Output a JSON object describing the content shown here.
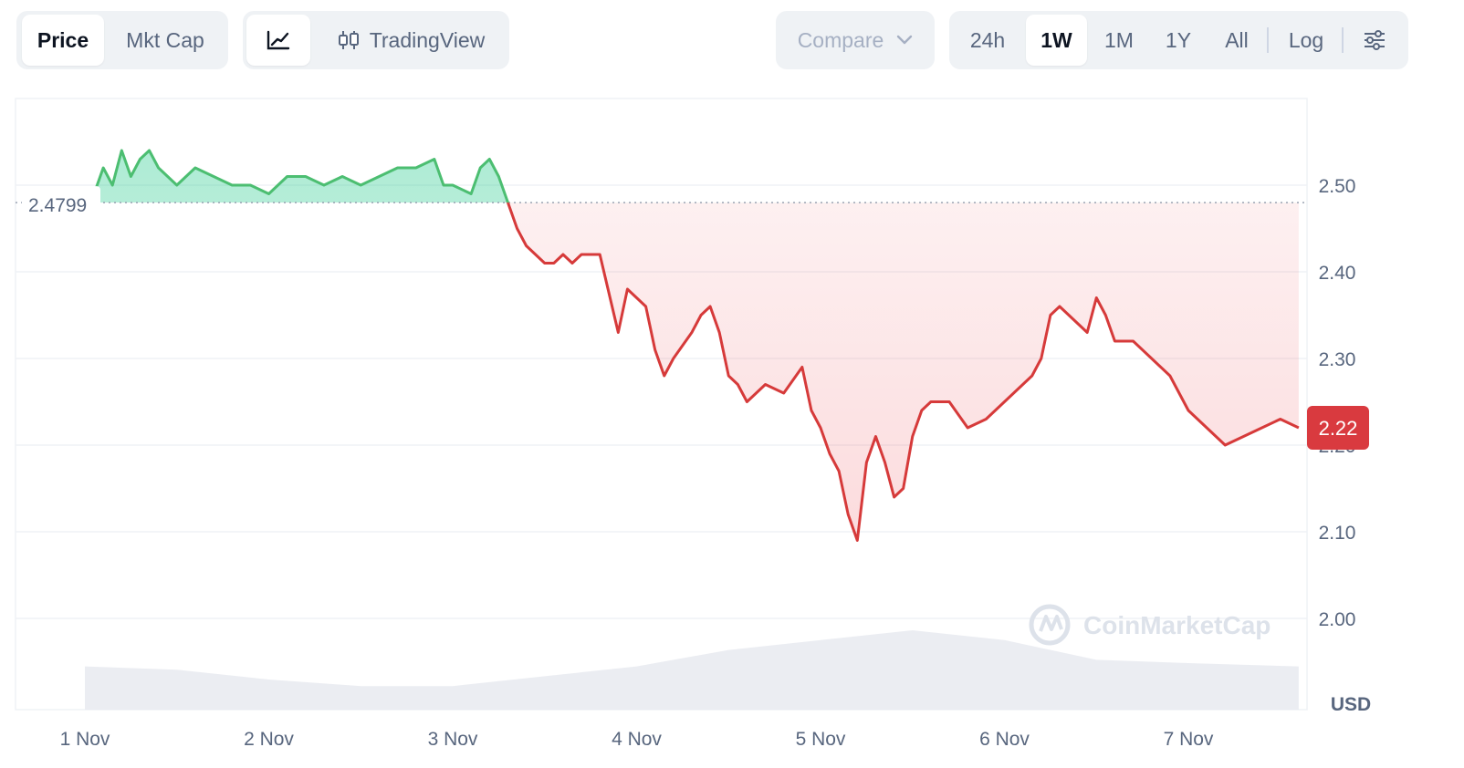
{
  "toolbar": {
    "view_tabs": [
      {
        "label": "Price",
        "active": true
      },
      {
        "label": "Mkt Cap",
        "active": false
      }
    ],
    "chart_style": {
      "line_icon": "line-chart-icon",
      "candle_icon": "candlestick-icon",
      "tradingview_label": "TradingView"
    },
    "compare": {
      "label": "Compare",
      "icon": "chevron-down-icon"
    },
    "ranges": [
      {
        "label": "24h",
        "active": false
      },
      {
        "label": "1W",
        "active": true
      },
      {
        "label": "1M",
        "active": false
      },
      {
        "label": "1Y",
        "active": false
      },
      {
        "label": "All",
        "active": false
      }
    ],
    "log_label": "Log",
    "settings_icon": "sliders-icon"
  },
  "chart": {
    "baseline_label": "2.4799",
    "current_price_label": "2.22",
    "currency_label": "USD",
    "watermark": "CoinMarketCap",
    "colors": {
      "up": "#16c784",
      "down": "#ea3943",
      "up_line": "#4cbe71",
      "down_line": "#d63a3a",
      "badge": "#d93a3f",
      "grid": "#eff2f5"
    }
  },
  "chart_data": {
    "type": "line",
    "title": "",
    "xlabel": "",
    "ylabel": "USD",
    "x_range": [
      1.0,
      7.6
    ],
    "ylim": [
      1.9,
      2.6
    ],
    "y_ticks": [
      2.0,
      2.1,
      2.2,
      2.3,
      2.4,
      2.5
    ],
    "y_tick_labels": [
      "2.00",
      "2.10",
      "2.20",
      "2.30",
      "2.40",
      "2.50"
    ],
    "x_ticks": [
      1.0,
      2.0,
      3.0,
      4.0,
      5.0,
      6.0,
      7.0
    ],
    "x_tick_labels": [
      "1 Nov",
      "2 Nov",
      "3 Nov",
      "4 Nov",
      "5 Nov",
      "6 Nov",
      "7 Nov"
    ],
    "baseline": 2.4799,
    "current": 2.22,
    "grid": true,
    "series": [
      {
        "x": [
          1.0,
          1.05,
          1.1,
          1.15,
          1.2,
          1.25,
          1.3,
          1.35,
          1.4,
          1.45,
          1.5,
          1.6,
          1.7,
          1.8,
          1.9,
          2.0,
          2.05,
          2.1,
          2.2,
          2.3,
          2.4,
          2.5,
          2.6,
          2.7,
          2.8,
          2.9,
          2.95,
          3.0,
          3.1,
          3.15,
          3.2,
          3.25,
          3.3,
          3.35,
          3.4,
          3.45,
          3.5,
          3.55,
          3.6,
          3.65,
          3.7,
          3.8,
          3.9,
          3.95,
          4.0,
          4.05,
          4.1,
          4.15,
          4.2,
          4.3,
          4.35,
          4.4,
          4.45,
          4.5,
          4.55,
          4.6,
          4.65,
          4.7,
          4.8,
          4.9,
          4.95,
          5.0,
          5.05,
          5.1,
          5.15,
          5.2,
          5.25,
          5.3,
          5.35,
          5.4,
          5.45,
          5.5,
          5.55,
          5.6,
          5.7,
          5.8,
          5.9,
          6.0,
          6.05,
          6.1,
          6.15,
          6.2,
          6.25,
          6.3,
          6.35,
          6.4,
          6.45,
          6.5,
          6.55,
          6.6,
          6.7,
          6.8,
          6.9,
          7.0,
          7.05,
          7.1,
          7.15,
          7.2,
          7.3,
          7.4,
          7.5,
          7.6
        ],
        "y": [
          2.47,
          2.49,
          2.52,
          2.5,
          2.54,
          2.51,
          2.53,
          2.54,
          2.52,
          2.51,
          2.5,
          2.52,
          2.51,
          2.5,
          2.5,
          2.49,
          2.5,
          2.51,
          2.51,
          2.5,
          2.51,
          2.5,
          2.51,
          2.52,
          2.52,
          2.53,
          2.5,
          2.5,
          2.49,
          2.52,
          2.53,
          2.51,
          2.48,
          2.45,
          2.43,
          2.42,
          2.41,
          2.41,
          2.42,
          2.41,
          2.42,
          2.42,
          2.33,
          2.38,
          2.37,
          2.36,
          2.31,
          2.28,
          2.3,
          2.33,
          2.35,
          2.36,
          2.33,
          2.28,
          2.27,
          2.25,
          2.26,
          2.27,
          2.26,
          2.29,
          2.24,
          2.22,
          2.19,
          2.17,
          2.12,
          2.09,
          2.18,
          2.21,
          2.18,
          2.14,
          2.15,
          2.21,
          2.24,
          2.25,
          2.25,
          2.22,
          2.23,
          2.25,
          2.26,
          2.27,
          2.28,
          2.3,
          2.35,
          2.36,
          2.35,
          2.34,
          2.33,
          2.37,
          2.35,
          2.32,
          2.32,
          2.3,
          2.28,
          2.24,
          2.23,
          2.22,
          2.21,
          2.2,
          2.21,
          2.22,
          2.23,
          2.22
        ]
      }
    ],
    "volume": {
      "x": [
        1.0,
        1.5,
        2.0,
        2.5,
        3.0,
        3.5,
        4.0,
        4.5,
        5.0,
        5.5,
        6.0,
        6.5,
        7.0,
        7.6
      ],
      "values": [
        0.45,
        0.4,
        0.25,
        0.15,
        0.15,
        0.3,
        0.45,
        0.7,
        0.85,
        1.0,
        0.85,
        0.55,
        0.5,
        0.45
      ]
    }
  }
}
